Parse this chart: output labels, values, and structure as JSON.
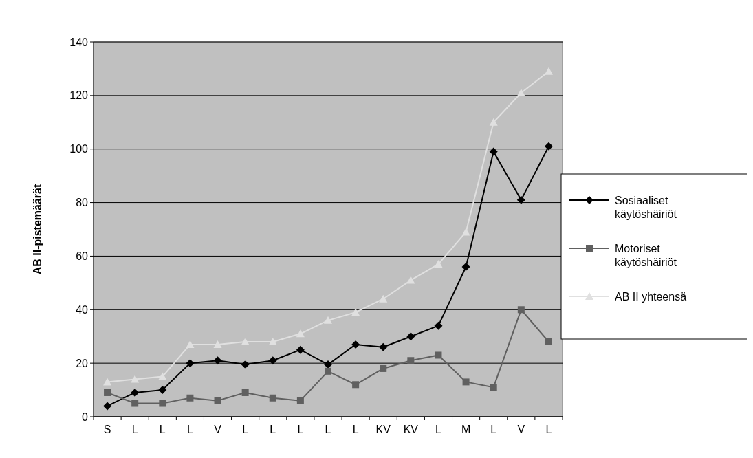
{
  "chart_data": {
    "type": "line",
    "ylabel": "AB II-pistemäärät",
    "categories": [
      "S",
      "L",
      "L",
      "L",
      "V",
      "L",
      "L",
      "L",
      "L",
      "L",
      "KV",
      "KV",
      "L",
      "M",
      "L",
      "V",
      "L"
    ],
    "series": [
      {
        "name": "Sosiaaliset käytöshäiriöt",
        "color": "#000000",
        "marker": "diamond",
        "values": [
          4,
          9,
          10,
          20,
          21,
          19.5,
          21,
          25,
          19.5,
          27,
          26,
          30,
          34,
          56,
          99,
          81,
          101
        ]
      },
      {
        "name": "Motoriset käytöshäiriöt",
        "color": "#606060",
        "marker": "square",
        "values": [
          9,
          5,
          5,
          7,
          6,
          9,
          7,
          6,
          17,
          12,
          18,
          21,
          23,
          13,
          11,
          40,
          28
        ]
      },
      {
        "name": "AB II yhteensä",
        "color": "#e0e0e0",
        "marker": "triangle",
        "values": [
          13,
          14,
          15,
          27,
          27,
          28,
          28,
          31,
          36,
          39,
          44,
          51,
          57,
          69,
          110,
          121,
          129
        ]
      }
    ],
    "ylim": [
      0,
      140
    ],
    "yticks": [
      0,
      20,
      40,
      60,
      80,
      100,
      120,
      140
    ],
    "grid": "y",
    "legend": "right"
  }
}
